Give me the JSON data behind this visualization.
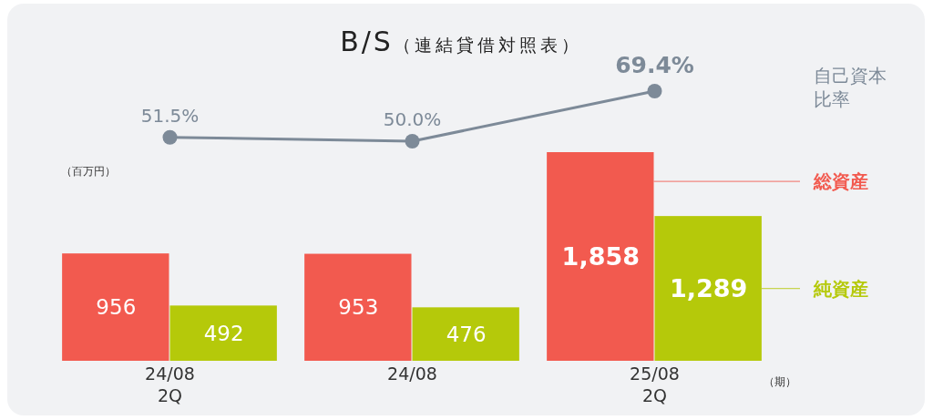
{
  "chart_data": [
    {
      "type": "line",
      "title": "B/S（連結貸借対照表）",
      "categories": [
        null,
        null,
        null
      ],
      "marker": "circle",
      "line_style": "solid",
      "series": [
        {
          "name": "自己資本比率",
          "color": "#7d8a98",
          "values": [
            51.5,
            50.0,
            69.4
          ],
          "value_labels": [
            "51.5%",
            "50.0%",
            "69.4%"
          ]
        }
      ]
    },
    {
      "type": "bar",
      "xlabel": "（期）",
      "ylabel": "（百万円）",
      "categories": [
        "24/08\n2Q",
        "24/08",
        "25/08\n2Q"
      ],
      "tick_labels": "x",
      "ylim": [
        0,
        1858
      ],
      "series": [
        {
          "name": "総資産",
          "color": "#f25a4f",
          "values": [
            956,
            953,
            1858
          ],
          "value_labels": [
            "956",
            "953",
            "1,858"
          ]
        },
        {
          "name": "純資産",
          "color": "#b5c90a",
          "values": [
            492,
            476,
            1289
          ],
          "value_labels": [
            "492",
            "476",
            "1,289"
          ]
        }
      ]
    }
  ]
}
